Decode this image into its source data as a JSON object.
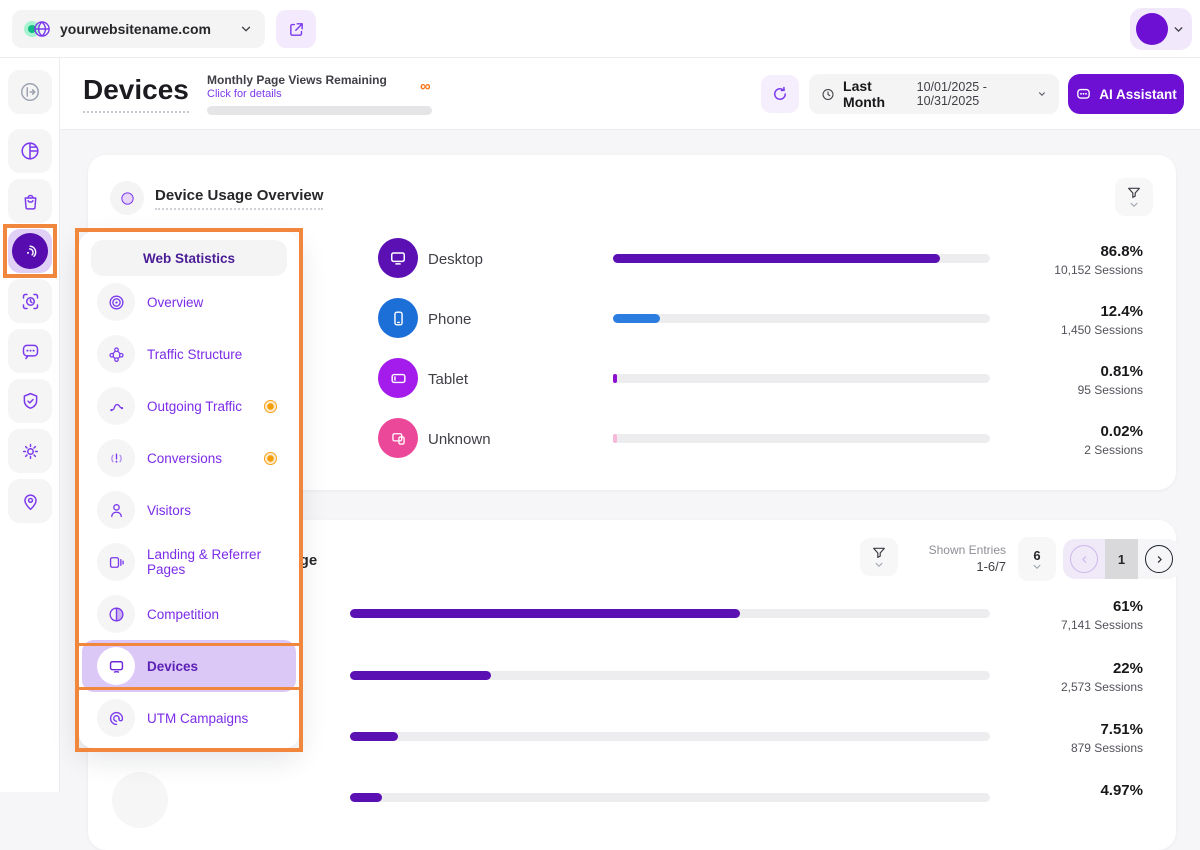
{
  "colors": {
    "primary_purple": "#6d10d4",
    "bar_purple": "#5b10b4",
    "blue": "#2b7de0",
    "magenta": "#a31ceb",
    "pink": "#ec4899",
    "annotation_orange": "#f0873d",
    "badge_orange": "#f59e0b",
    "link_purple": "#7c3aed"
  },
  "topbar": {
    "website": "yourwebsitename.com"
  },
  "header": {
    "title": "Devices",
    "quota_label": "Monthly Page Views Remaining",
    "quota_link": "Click for details",
    "quota_value": "∞",
    "period_label": "Last Month",
    "period_range": "10/01/2025 - 10/31/2025",
    "ai_button": "AI Assistant"
  },
  "menu": {
    "title": "Web Statistics",
    "items": [
      {
        "label": "Overview",
        "badge": false,
        "active": false
      },
      {
        "label": "Traffic Structure",
        "badge": false,
        "active": false
      },
      {
        "label": "Outgoing Traffic",
        "badge": true,
        "active": false
      },
      {
        "label": "Conversions",
        "badge": true,
        "active": false
      },
      {
        "label": "Visitors",
        "badge": false,
        "active": false
      },
      {
        "label": "Landing & Referrer Pages",
        "badge": false,
        "active": false
      },
      {
        "label": "Competition",
        "badge": false,
        "active": false
      },
      {
        "label": "Devices",
        "badge": false,
        "active": true
      },
      {
        "label": "UTM Campaigns",
        "badge": false,
        "active": false
      }
    ]
  },
  "device_overview": {
    "title": "Device Usage Overview",
    "rows": [
      {
        "label": "Desktop",
        "pct": "86.8%",
        "pct_num": 86.8,
        "sessions": "10,152 Sessions",
        "color": "#5b10b4",
        "bar_color": "#5b10b4"
      },
      {
        "label": "Phone",
        "pct": "12.4%",
        "pct_num": 12.4,
        "sessions": "1,450 Sessions",
        "color": "#1d6fd8",
        "bar_color": "#2b7de0"
      },
      {
        "label": "Tablet",
        "pct": "0.81%",
        "pct_num": 0.81,
        "sessions": "95 Sessions",
        "color": "#a31ceb",
        "bar_color": "#8b10d0"
      },
      {
        "label": "Unknown",
        "pct": "0.02%",
        "pct_num": 0.02,
        "sessions": "2 Sessions",
        "color": "#ec4899",
        "bar_color": "#f6b9d8"
      }
    ]
  },
  "usage_card": {
    "title_visible": "sage",
    "shown_entries_label": "Shown Entries",
    "shown_entries_value": "1-6/7",
    "page_size": "6",
    "current_page": "1",
    "bar_color": "#5b10b4",
    "rows": [
      {
        "pct": "61%",
        "pct_num": 61,
        "sessions": "7,141 Sessions"
      },
      {
        "pct": "22%",
        "pct_num": 22,
        "sessions": "2,573 Sessions"
      },
      {
        "pct": "7.51%",
        "pct_num": 7.51,
        "sessions": "879 Sessions"
      },
      {
        "pct": "4.97%",
        "pct_num": 4.97,
        "sessions": ""
      }
    ]
  }
}
